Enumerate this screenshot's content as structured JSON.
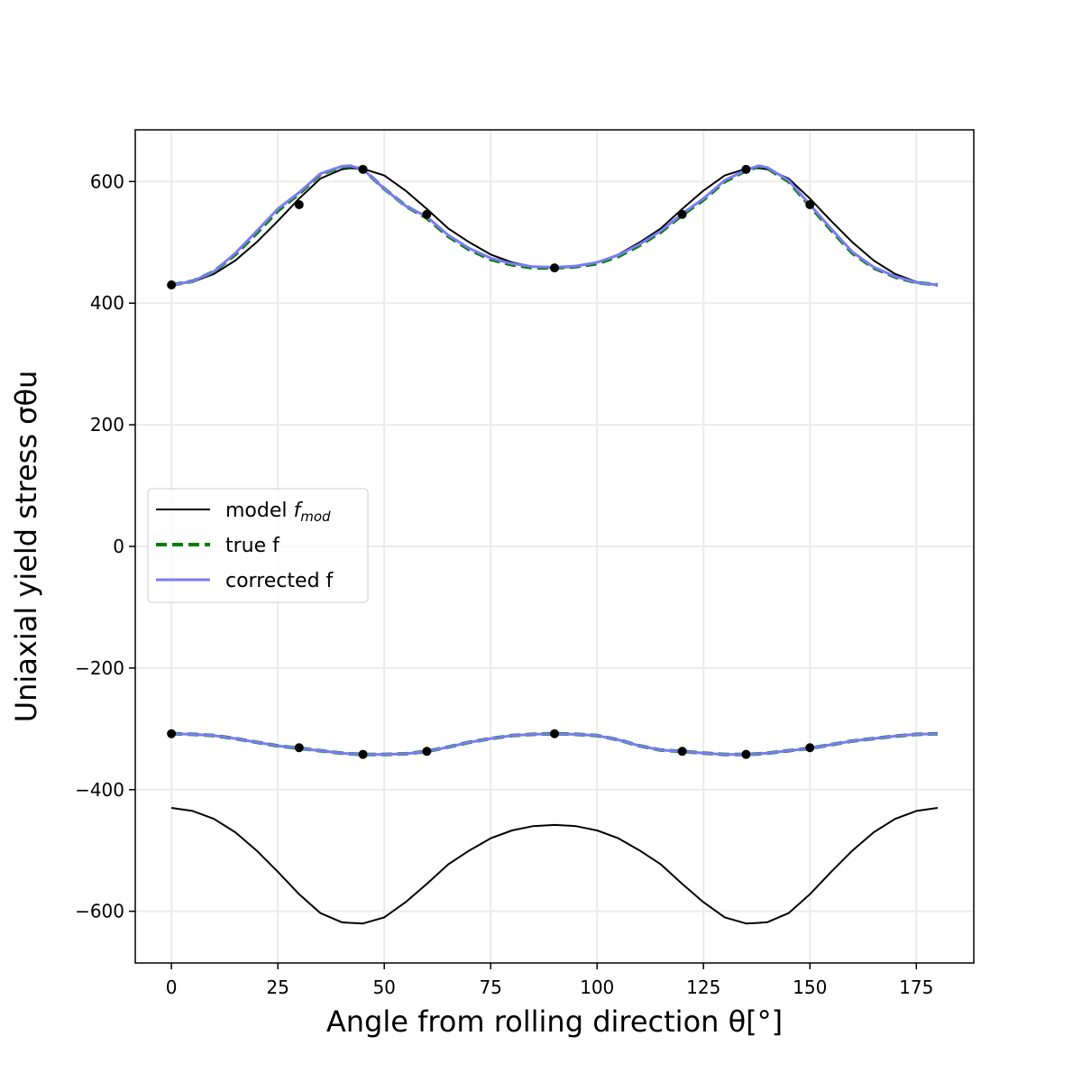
{
  "chart_data": {
    "type": "line",
    "xlabel": "Angle from rolling direction θ[°]",
    "ylabel": "Uniaxial yield stress σθu",
    "xlim": [
      -8.5,
      188.5
    ],
    "ylim": [
      -685,
      685
    ],
    "grid": true,
    "legend_placement": "center-left",
    "x_ticks": [
      0,
      25,
      50,
      75,
      100,
      125,
      150,
      175
    ],
    "x_tick_labels": [
      "0",
      "25",
      "50",
      "75",
      "100",
      "125",
      "150",
      "175"
    ],
    "y_ticks": [
      -600,
      -400,
      -200,
      0,
      200,
      400,
      600
    ],
    "y_tick_labels": [
      "−600",
      "−400",
      "−200",
      "0",
      "200",
      "400",
      "600"
    ],
    "curve_x": [
      0,
      5,
      10,
      15,
      20,
      25,
      30,
      35,
      40,
      42,
      45,
      50,
      55,
      60,
      65,
      70,
      75,
      80,
      85,
      90,
      95,
      100,
      105,
      110,
      115,
      120,
      125,
      130,
      135,
      138,
      140,
      145,
      150,
      155,
      160,
      165,
      170,
      175,
      180
    ],
    "series": [
      {
        "name": "model f_mod",
        "legend_main": "model ",
        "legend_italic": "f",
        "legend_sub": "mod",
        "color": "#000000",
        "style": "solid",
        "branches": [
          [
            430,
            435,
            448,
            470,
            500,
            535,
            572,
            605,
            620,
            622,
            621,
            610,
            585,
            555,
            523,
            500,
            480,
            467,
            460,
            458,
            460,
            467,
            480,
            500,
            523,
            555,
            585,
            610,
            621,
            622,
            620,
            605,
            572,
            535,
            500,
            470,
            448,
            435,
            430
          ],
          [
            -430,
            -435,
            -448,
            -470,
            -500,
            -535,
            -572,
            -603,
            -618,
            -619,
            -620,
            -610,
            -585,
            -555,
            -523,
            -500,
            -480,
            -467,
            -460,
            -458,
            -460,
            -467,
            -480,
            -500,
            -523,
            -555,
            -585,
            -610,
            -620,
            -619,
            -618,
            -603,
            -572,
            -535,
            -500,
            -470,
            -448,
            -435,
            -430
          ]
        ]
      },
      {
        "name": "true f",
        "legend_main": "true f",
        "color": "#008000",
        "style": "dashed",
        "branches": [
          [
            430,
            436,
            452,
            480,
            515,
            552,
            580,
            612,
            624,
            625,
            620,
            588,
            560,
            540,
            510,
            488,
            472,
            463,
            458,
            458,
            460,
            465,
            477,
            495,
            517,
            545,
            570,
            600,
            618,
            625,
            622,
            600,
            560,
            520,
            482,
            458,
            443,
            434,
            430
          ],
          [
            -308,
            -309,
            -311,
            -316,
            -322,
            -328,
            -332,
            -336,
            -340,
            -341,
            -342,
            -342,
            -341,
            -337,
            -330,
            -322,
            -316,
            -311,
            -309,
            -308,
            -309,
            -311,
            -318,
            -328,
            -335,
            -337,
            -340,
            -342,
            -342,
            -341,
            -340,
            -336,
            -332,
            -326,
            -320,
            -316,
            -312,
            -309,
            -308
          ]
        ]
      },
      {
        "name": "corrected f",
        "legend_main": "corrected f",
        "color": "#7b7bf5",
        "style": "solid",
        "branches": [
          [
            430,
            436,
            452,
            482,
            518,
            555,
            582,
            613,
            625,
            626,
            620,
            588,
            560,
            542,
            512,
            490,
            474,
            465,
            460,
            459,
            461,
            467,
            479,
            497,
            519,
            547,
            572,
            602,
            619,
            626,
            623,
            602,
            562,
            522,
            484,
            459,
            444,
            434,
            430
          ],
          [
            -308,
            -309,
            -311,
            -316,
            -322,
            -328,
            -332,
            -336,
            -340,
            -341,
            -342,
            -342,
            -341,
            -337,
            -330,
            -322,
            -316,
            -311,
            -309,
            -308,
            -309,
            -311,
            -318,
            -328,
            -335,
            -337,
            -340,
            -342,
            -342,
            -341,
            -340,
            -336,
            -332,
            -326,
            -320,
            -316,
            -312,
            -309,
            -308
          ]
        ]
      }
    ],
    "data_points": {
      "name": "data points",
      "color": "#000000",
      "x": [
        0,
        30,
        45,
        60,
        90,
        120,
        135,
        150,
        0,
        30,
        45,
        60,
        90,
        120,
        135,
        150
      ],
      "y": [
        430,
        562,
        620,
        546,
        458,
        546,
        620,
        562,
        -308,
        -331,
        -342,
        -337,
        -308,
        -337,
        -342,
        -331
      ]
    }
  }
}
